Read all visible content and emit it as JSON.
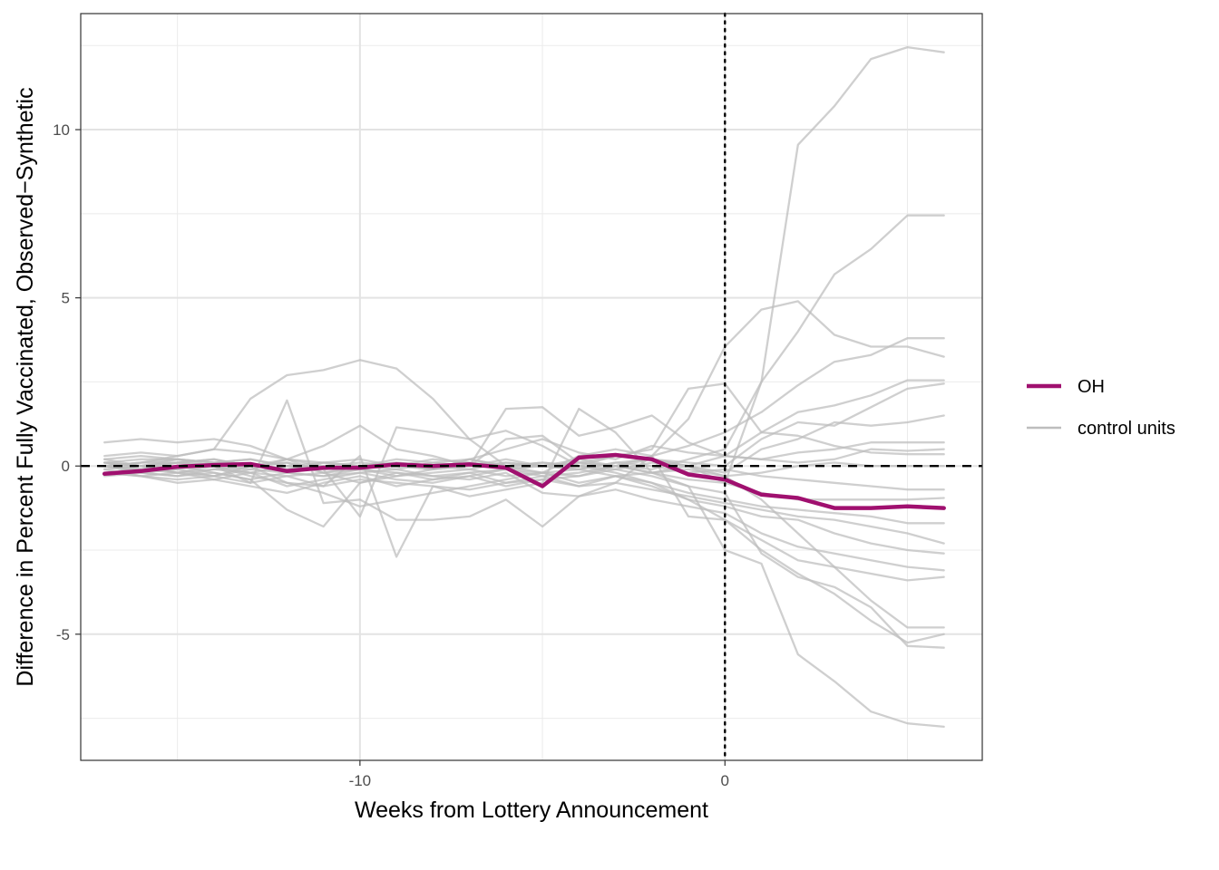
{
  "chart_data": {
    "type": "line",
    "title": "",
    "xlabel": "Weeks from Lottery Announcement",
    "ylabel": "Difference in Percent Fully Vaccinated, Observed−Synthetic",
    "xlim": [
      -17.65,
      7.05
    ],
    "ylim": [
      -8.75,
      13.45
    ],
    "x_ticks": [
      -10,
      0
    ],
    "x_tick_labels": [
      "-10",
      "0"
    ],
    "y_ticks": [
      -5,
      0,
      5,
      10
    ],
    "y_tick_labels": [
      "-5",
      "0",
      "5",
      "10"
    ],
    "grid": true,
    "reference_lines": [
      {
        "axis": "y",
        "value": 0,
        "style": "dashed",
        "color": "#000000"
      },
      {
        "axis": "x",
        "value": 0,
        "style": "dotted",
        "color": "#000000"
      }
    ],
    "legend_position": "right",
    "legend": [
      {
        "label": "OH",
        "color": "#A0106F"
      },
      {
        "label": "control units",
        "color": "#BDBDBD"
      }
    ],
    "x": [
      -17,
      -16,
      -15,
      -14,
      -13,
      -12,
      -11,
      -10,
      -9,
      -8,
      -7,
      -6,
      -5,
      -4,
      -3,
      -2,
      -1,
      0,
      1,
      2,
      3,
      4,
      5,
      6
    ],
    "series": [
      {
        "name": "OH",
        "color": "#A0106F",
        "values": [
          -0.23,
          -0.15,
          -0.02,
          0.03,
          0.06,
          -0.15,
          -0.05,
          -0.05,
          0.05,
          0.0,
          0.05,
          -0.05,
          -0.6,
          0.25,
          0.33,
          0.2,
          -0.25,
          -0.4,
          -0.85,
          -0.95,
          -1.25,
          -1.25,
          -1.2,
          -1.25
        ]
      },
      {
        "group": "control units",
        "color": "#BDBDBD",
        "values": [
          0.0,
          0.1,
          0.2,
          0.1,
          0.0,
          -0.1,
          0.0,
          0.1,
          0.0,
          -0.1,
          0.0,
          0.1,
          0.0,
          -0.1,
          0.1,
          0.2,
          0.0,
          -0.5,
          2.5,
          9.55,
          10.7,
          12.1,
          12.45,
          12.3
        ]
      },
      {
        "group": "control units",
        "color": "#BDBDBD",
        "values": [
          0.1,
          0.0,
          -0.1,
          0.1,
          0.2,
          0.0,
          -0.1,
          0.0,
          0.1,
          0.0,
          -0.1,
          0.1,
          0.0,
          0.1,
          0.0,
          -0.1,
          0.2,
          0.5,
          2.5,
          4.0,
          5.7,
          6.45,
          7.45,
          7.45
        ]
      },
      {
        "group": "control units",
        "color": "#BDBDBD",
        "values": [
          0.2,
          0.3,
          0.2,
          0.1,
          0.0,
          0.2,
          0.1,
          0.0,
          -0.1,
          0.1,
          0.2,
          0.0,
          0.1,
          0.0,
          0.3,
          0.5,
          2.3,
          2.45,
          1.0,
          0.9,
          0.6,
          0.4,
          0.35,
          0.35
        ]
      },
      {
        "group": "control units",
        "color": "#BDBDBD",
        "values": [
          0.0,
          0.1,
          0.3,
          0.5,
          2.0,
          2.7,
          2.85,
          3.15,
          2.9,
          2.0,
          0.8,
          0.0,
          0.0,
          0.2,
          0.0,
          0.3,
          1.4,
          3.55,
          4.65,
          4.9,
          3.9,
          3.55,
          3.55,
          3.25
        ]
      },
      {
        "group": "control units",
        "color": "#BDBDBD",
        "values": [
          0.1,
          0.2,
          0.2,
          0.1,
          0.2,
          0.0,
          0.1,
          0.0,
          0.0,
          0.2,
          0.1,
          0.0,
          -0.2,
          0.3,
          0.5,
          0.3,
          0.6,
          1.0,
          1.6,
          2.4,
          3.1,
          3.3,
          3.8,
          3.8
        ]
      },
      {
        "group": "control units",
        "color": "#BDBDBD",
        "values": [
          0.0,
          -0.1,
          0.1,
          0.2,
          0.0,
          0.1,
          -0.1,
          0.0,
          0.2,
          0.1,
          0.0,
          1.7,
          1.75,
          0.9,
          1.15,
          1.5,
          0.7,
          0.3,
          1.0,
          1.6,
          1.8,
          2.1,
          2.55,
          2.55
        ]
      },
      {
        "group": "control units",
        "color": "#BDBDBD",
        "values": [
          -0.1,
          0.0,
          0.1,
          0.0,
          -0.1,
          0.2,
          0.0,
          -0.1,
          0.1,
          0.0,
          0.1,
          -0.1,
          0.0,
          0.1,
          0.0,
          0.2,
          0.1,
          0.0,
          0.8,
          1.3,
          1.2,
          1.75,
          2.3,
          2.45
        ]
      },
      {
        "group": "control units",
        "color": "#BDBDBD",
        "values": [
          0.0,
          0.0,
          0.1,
          0.2,
          0.0,
          -0.1,
          0.1,
          0.2,
          0.0,
          -0.1,
          0.2,
          0.0,
          0.1,
          0.0,
          -0.1,
          0.1,
          0.0,
          -0.2,
          0.5,
          0.8,
          1.3,
          1.2,
          1.3,
          1.5
        ]
      },
      {
        "group": "control units",
        "color": "#BDBDBD",
        "values": [
          0.3,
          0.4,
          0.3,
          0.5,
          0.4,
          0.2,
          0.6,
          1.2,
          0.5,
          0.3,
          0.0,
          0.8,
          0.9,
          0.1,
          0.3,
          0.2,
          0.0,
          0.3,
          0.2,
          0.4,
          0.5,
          0.7,
          0.7,
          0.7
        ]
      },
      {
        "group": "control units",
        "color": "#BDBDBD",
        "values": [
          0.7,
          0.8,
          0.7,
          0.8,
          0.6,
          0.2,
          -0.2,
          -0.5,
          -0.3,
          -0.1,
          0.2,
          0.5,
          0.8,
          0.4,
          0.2,
          0.6,
          0.4,
          0.3,
          0.2,
          0.1,
          0.2,
          0.5,
          0.45,
          0.5
        ]
      },
      {
        "group": "control units",
        "color": "#BDBDBD",
        "values": [
          -0.3,
          -0.2,
          -0.3,
          -0.1,
          -0.2,
          -0.3,
          -0.2,
          -0.1,
          -0.3,
          -0.2,
          -0.1,
          -0.3,
          -0.2,
          -0.1,
          -0.3,
          -0.2,
          -0.1,
          -0.3,
          -0.2,
          0.0,
          0.1,
          0.0,
          0.0,
          0.0
        ]
      },
      {
        "group": "control units",
        "color": "#BDBDBD",
        "values": [
          0.2,
          0.0,
          -0.2,
          -0.1,
          0.0,
          0.1,
          -0.2,
          0.0,
          0.1,
          -0.1,
          0.0,
          0.2,
          0.0,
          -0.1,
          0.1,
          0.0,
          -0.2,
          -0.1,
          -0.3,
          -0.4,
          -0.5,
          -0.6,
          -0.7,
          -0.7
        ]
      },
      {
        "group": "control units",
        "color": "#BDBDBD",
        "values": [
          0.0,
          -0.2,
          -0.3,
          -0.2,
          -0.4,
          -0.2,
          -0.3,
          -0.1,
          -0.2,
          -0.4,
          -0.3,
          -0.1,
          -0.2,
          -0.3,
          0.0,
          -0.2,
          -0.4,
          -0.5,
          -0.8,
          -1.0,
          -1.0,
          -1.0,
          -1.0,
          -0.95
        ]
      },
      {
        "group": "control units",
        "color": "#BDBDBD",
        "values": [
          -0.1,
          -0.3,
          -0.5,
          -0.4,
          -0.6,
          -0.8,
          -0.5,
          -0.3,
          -0.6,
          -0.4,
          -0.2,
          -0.5,
          -0.4,
          -0.6,
          -0.3,
          -0.5,
          -0.8,
          -1.0,
          -1.2,
          -1.3,
          -1.4,
          -1.5,
          -1.7,
          -1.7
        ]
      },
      {
        "group": "control units",
        "color": "#BDBDBD",
        "values": [
          0.1,
          0.0,
          -0.2,
          0.0,
          -0.3,
          -0.5,
          -0.6,
          -0.4,
          -0.5,
          -0.6,
          -0.7,
          -0.5,
          -0.3,
          -0.6,
          -0.5,
          -0.7,
          -0.9,
          -1.1,
          -1.3,
          -1.5,
          -1.6,
          -1.8,
          -2.0,
          -2.3
        ]
      },
      {
        "group": "control units",
        "color": "#BDBDBD",
        "values": [
          0.0,
          -0.2,
          -0.1,
          -0.3,
          0.0,
          -0.5,
          -0.8,
          -1.2,
          -1.0,
          -0.8,
          -0.6,
          -0.4,
          -0.2,
          -0.5,
          -0.3,
          -0.6,
          -1.0,
          -1.2,
          -1.5,
          -1.6,
          -2.0,
          -2.3,
          -2.5,
          -2.6
        ]
      },
      {
        "group": "control units",
        "color": "#BDBDBD",
        "values": [
          -0.2,
          -0.1,
          0.0,
          -0.2,
          -0.4,
          -1.3,
          -1.8,
          -0.5,
          -0.2,
          -0.3,
          -0.4,
          -0.2,
          -0.8,
          -0.9,
          -0.7,
          -1.0,
          -1.2,
          -1.4,
          -2.0,
          -2.4,
          -2.6,
          -2.8,
          -3.0,
          -3.1
        ]
      },
      {
        "group": "control units",
        "color": "#BDBDBD",
        "values": [
          0.1,
          0.0,
          0.2,
          0.0,
          -0.2,
          0.0,
          -0.1,
          -1.5,
          1.15,
          1.0,
          0.8,
          1.05,
          0.6,
          0.0,
          -0.2,
          -0.5,
          -1.0,
          -1.6,
          -2.2,
          -2.8,
          -3.0,
          -3.2,
          -3.4,
          -3.3
        ]
      },
      {
        "group": "control units",
        "color": "#BDBDBD",
        "values": [
          0.0,
          0.1,
          0.1,
          0.0,
          -0.5,
          -0.3,
          -0.6,
          0.3,
          -2.7,
          -0.6,
          -0.9,
          -0.7,
          -0.5,
          1.7,
          1.0,
          -0.2,
          0.0,
          -0.3,
          -1.0,
          -2.0,
          -3.0,
          -4.0,
          -4.8,
          -4.8
        ]
      },
      {
        "group": "control units",
        "color": "#BDBDBD",
        "values": [
          -0.2,
          -0.3,
          -0.4,
          -0.3,
          -0.5,
          1.95,
          -1.1,
          -1.0,
          -1.6,
          -1.6,
          -1.5,
          -1.0,
          -1.8,
          -0.9,
          -0.5,
          0.3,
          -1.5,
          -1.6,
          -2.5,
          -3.2,
          -3.8,
          -4.6,
          -5.25,
          -5.0
        ]
      },
      {
        "group": "control units",
        "color": "#BDBDBD",
        "values": [
          0.0,
          -0.1,
          -0.2,
          -0.4,
          -0.2,
          -0.6,
          -0.4,
          -0.2,
          -0.4,
          -0.5,
          -0.3,
          -0.6,
          -0.4,
          -0.3,
          -0.1,
          -0.3,
          -0.6,
          -0.8,
          -2.6,
          -3.3,
          -3.6,
          -4.2,
          -5.35,
          -5.4
        ]
      },
      {
        "group": "control units",
        "color": "#BDBDBD",
        "values": [
          -0.2,
          -0.3,
          -0.2,
          -0.3,
          -0.1,
          -0.2,
          -0.3,
          -0.2,
          -0.1,
          -0.3,
          -0.2,
          -0.1,
          -0.3,
          -0.2,
          0.0,
          -0.2,
          -0.6,
          -2.5,
          -2.9,
          -5.6,
          -6.4,
          -7.3,
          -7.65,
          -7.75
        ]
      }
    ]
  }
}
